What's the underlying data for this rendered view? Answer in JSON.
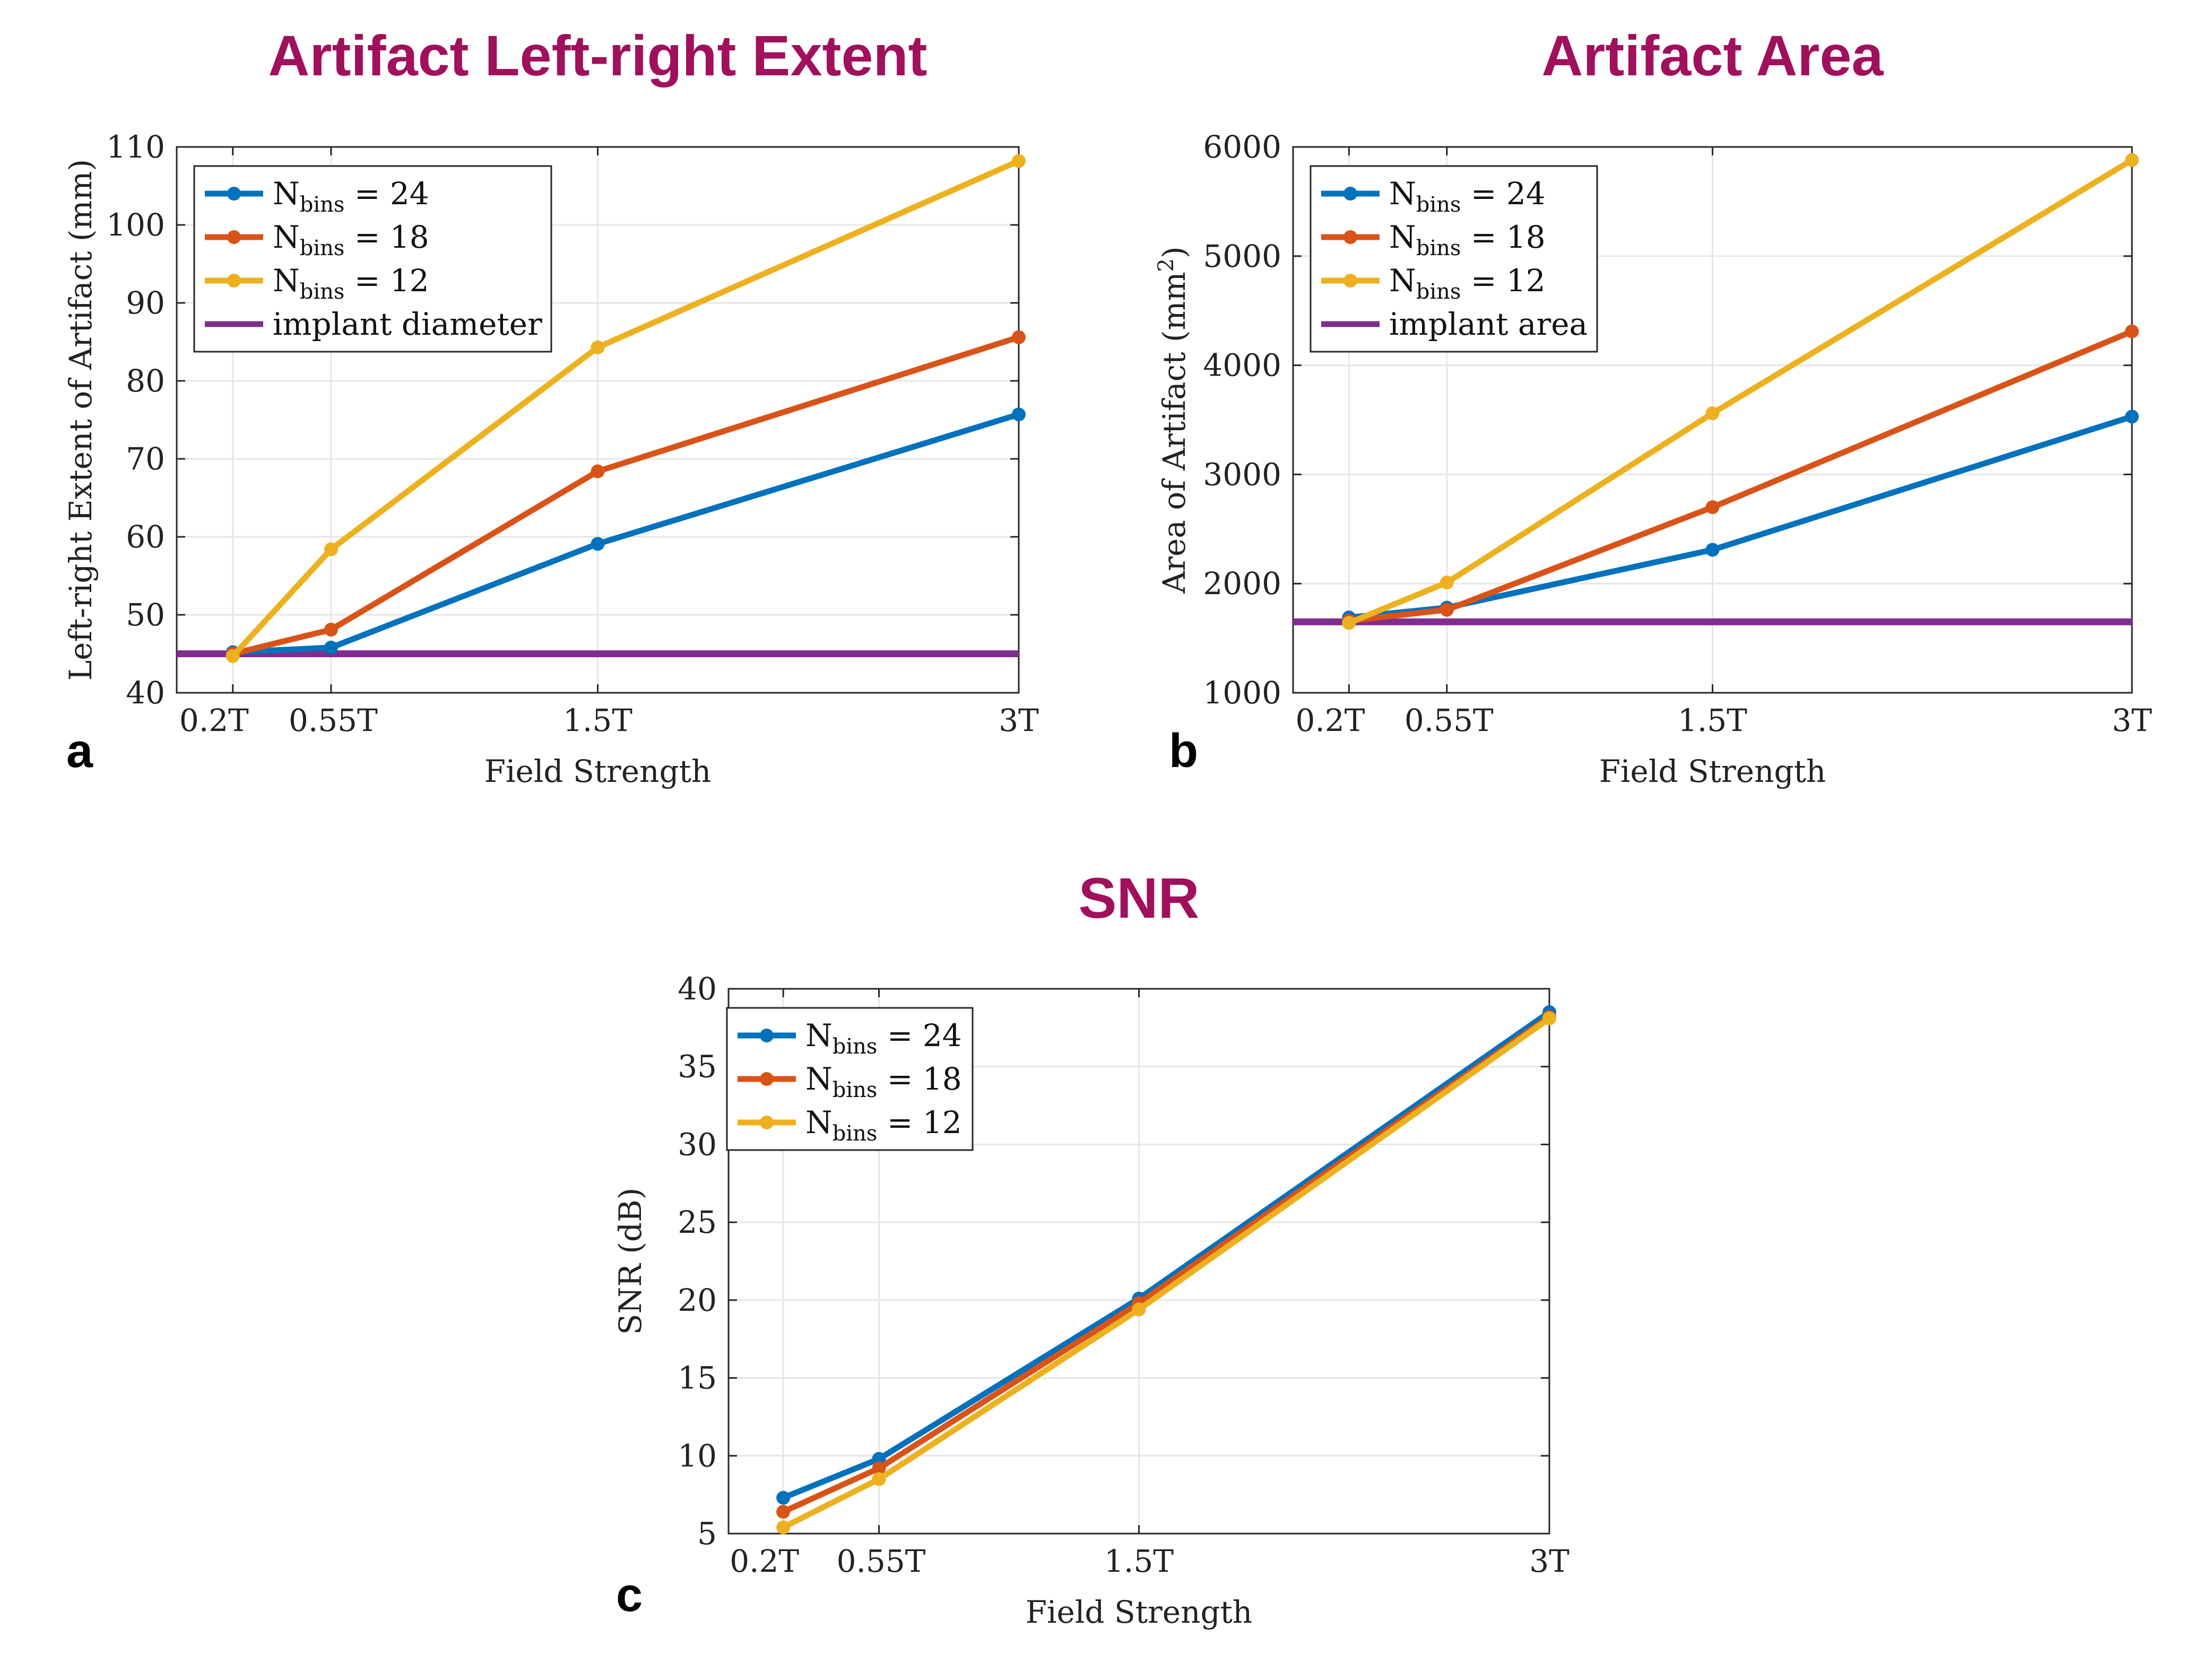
{
  "chart_data": [
    {
      "id": "a",
      "type": "line",
      "panel_label": "a",
      "title": "Artifact Left-right Extent",
      "xlabel": "Field Strength",
      "ylabel": "Left-right Extent of Artifact (mm)",
      "x": [
        0.2,
        0.55,
        1.5,
        3
      ],
      "x_tick_labels": [
        "0.2T",
        "0.55T",
        "1.5T",
        "3T"
      ],
      "xlim": [
        0,
        3
      ],
      "ylim": [
        40,
        110
      ],
      "y_ticks": [
        40,
        50,
        60,
        70,
        80,
        90,
        100,
        110
      ],
      "grid": true,
      "legend_location": "top-left",
      "series": [
        {
          "name": "N",
          "sub": "bins",
          "suffix": " = 24",
          "color": "#0072bd",
          "values": [
            45.2,
            45.8,
            59.1,
            75.7
          ]
        },
        {
          "name": "N",
          "sub": "bins",
          "suffix": " = 18",
          "color": "#d95319",
          "values": [
            45.0,
            48.1,
            68.4,
            85.6
          ]
        },
        {
          "name": "N",
          "sub": "bins",
          "suffix": " = 12",
          "color": "#edb120",
          "values": [
            44.7,
            58.4,
            84.3,
            108.2
          ]
        }
      ],
      "reference": {
        "name": "implant diameter",
        "color": "#7e2f8e",
        "value": 45
      }
    },
    {
      "id": "b",
      "type": "line",
      "panel_label": "b",
      "title": "Artifact Area",
      "xlabel": "Field Strength",
      "ylabel": "Area of Artifact (mm",
      "ylabel_sup": "2",
      "ylabel_end": ")",
      "x": [
        0.2,
        0.55,
        1.5,
        3
      ],
      "x_tick_labels": [
        "0.2T",
        "0.55T",
        "1.5T",
        "3T"
      ],
      "xlim": [
        0,
        3
      ],
      "ylim": [
        1000,
        6000
      ],
      "y_ticks": [
        1000,
        2000,
        3000,
        4000,
        5000,
        6000
      ],
      "grid": true,
      "legend_location": "top-left",
      "series": [
        {
          "name": "N",
          "sub": "bins",
          "suffix": " = 24",
          "color": "#0072bd",
          "values": [
            1690,
            1780,
            2310,
            3530
          ]
        },
        {
          "name": "N",
          "sub": "bins",
          "suffix": " = 18",
          "color": "#d95319",
          "values": [
            1660,
            1760,
            2700,
            4310
          ]
        },
        {
          "name": "N",
          "sub": "bins",
          "suffix": " = 12",
          "color": "#edb120",
          "values": [
            1640,
            2010,
            3560,
            5880
          ]
        }
      ],
      "reference": {
        "name": "implant area",
        "color": "#7e2f8e",
        "value": 1650
      }
    },
    {
      "id": "c",
      "type": "line",
      "panel_label": "c",
      "title": "SNR",
      "xlabel": "Field Strength",
      "ylabel": "SNR (dB)",
      "x": [
        0.2,
        0.55,
        1.5,
        3
      ],
      "x_tick_labels": [
        "0.2T",
        "0.55T",
        "1.5T",
        "3T"
      ],
      "xlim": [
        0,
        3
      ],
      "ylim": [
        5,
        40
      ],
      "y_ticks": [
        5,
        10,
        15,
        20,
        25,
        30,
        35,
        40
      ],
      "grid": true,
      "legend_location": "top-left",
      "series": [
        {
          "name": "N",
          "sub": "bins",
          "suffix": " = 24",
          "color": "#0072bd",
          "values": [
            7.3,
            9.8,
            20.1,
            38.5
          ]
        },
        {
          "name": "N",
          "sub": "bins",
          "suffix": " = 18",
          "color": "#d95319",
          "values": [
            6.4,
            9.2,
            19.8,
            38.2
          ]
        },
        {
          "name": "N",
          "sub": "bins",
          "suffix": " = 12",
          "color": "#edb120",
          "values": [
            5.4,
            8.5,
            19.4,
            38.1
          ]
        }
      ]
    }
  ]
}
